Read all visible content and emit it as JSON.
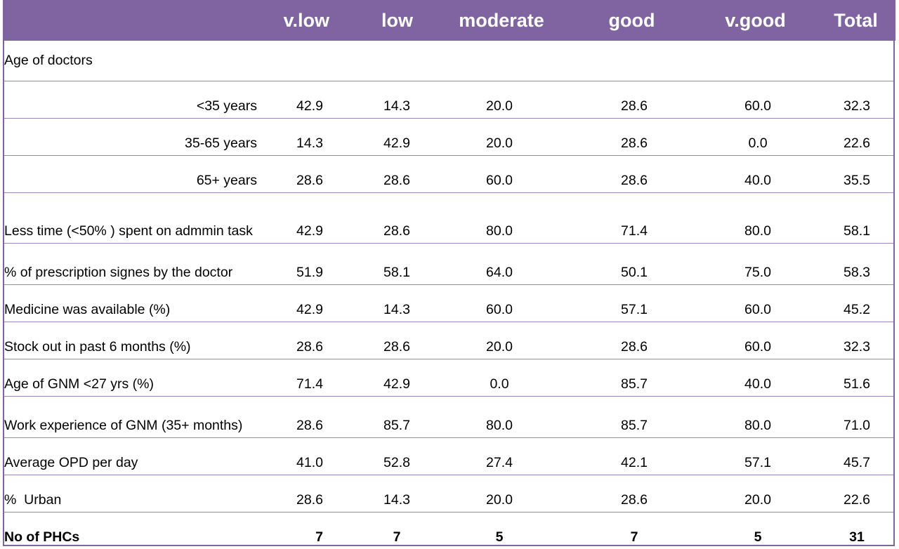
{
  "header": {
    "label": "",
    "columns": [
      "v.low",
      "low",
      "moderate",
      "good",
      "v.good",
      "Total"
    ]
  },
  "rows": [
    {
      "label": "Age of doctors",
      "values": [
        "",
        "",
        "",
        "",
        "",
        ""
      ]
    },
    {
      "label": "<35 years",
      "values": [
        "42.9",
        "14.3",
        "20.0",
        "28.6",
        "60.0",
        "32.3"
      ]
    },
    {
      "label": "35-65 years",
      "values": [
        "14.3",
        "42.9",
        "20.0",
        "28.6",
        "0.0",
        "22.6"
      ]
    },
    {
      "label": "65+ years",
      "values": [
        "28.6",
        "28.6",
        "60.0",
        "28.6",
        "40.0",
        "35.5"
      ]
    },
    {
      "label": "Less time (<50% ) spent on admmin task",
      "values": [
        "42.9",
        "28.6",
        "80.0",
        "71.4",
        "80.0",
        "58.1"
      ]
    },
    {
      "label": "% of prescription signes by the doctor",
      "values": [
        "51.9",
        "58.1",
        "64.0",
        "50.1",
        "75.0",
        "58.3"
      ]
    },
    {
      "label": "Medicine was available (%)",
      "values": [
        "42.9",
        "14.3",
        "60.0",
        "57.1",
        "60.0",
        "45.2"
      ]
    },
    {
      "label": "Stock out in past 6 months (%)",
      "values": [
        "28.6",
        "28.6",
        "20.0",
        "28.6",
        "60.0",
        "32.3"
      ]
    },
    {
      "label": "Age of GNM <27 yrs (%)",
      "values": [
        "71.4",
        "42.9",
        "0.0",
        "85.7",
        "40.0",
        "51.6"
      ]
    },
    {
      "label": "Work experience of GNM (35+ months)",
      "values": [
        "28.6",
        "85.7",
        "80.0",
        "85.7",
        "80.0",
        "71.0"
      ]
    },
    {
      "label": "Average OPD per day",
      "values": [
        "41.0",
        "52.8",
        "27.4",
        "42.1",
        "57.1",
        "45.7"
      ]
    },
    {
      "label": "%  Urban",
      "values": [
        "28.6",
        "14.3",
        "20.0",
        "28.6",
        "20.0",
        "22.6"
      ]
    },
    {
      "label": "No of PHCs",
      "values": [
        "7",
        "7",
        "5",
        "7",
        "5",
        "31"
      ]
    }
  ],
  "colors": {
    "header_bg": "#8064a2",
    "header_text": "#ffffff",
    "rule": "#9b86c0"
  }
}
